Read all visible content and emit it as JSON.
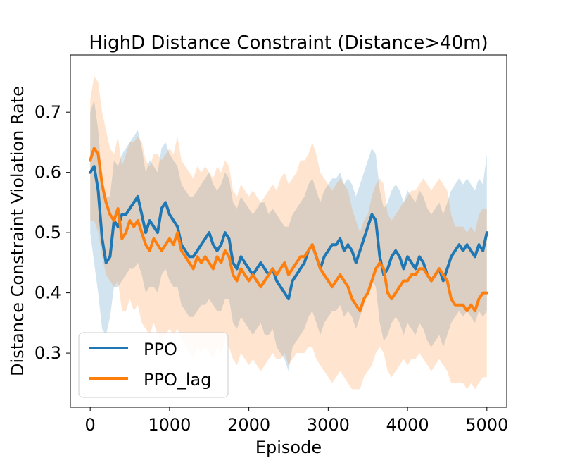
{
  "chart_data": {
    "type": "line",
    "title": "HighD Distance Constraint (Distance>40m)",
    "xlabel": "Episode",
    "ylabel": "Distance Constraint Violation Rate",
    "xlim": [
      -250,
      5250
    ],
    "ylim": [
      0.21,
      0.795
    ],
    "xticks": [
      0,
      1000,
      2000,
      3000,
      4000,
      5000
    ],
    "xtick_labels": [
      "0",
      "1000",
      "2000",
      "3000",
      "4000",
      "5000"
    ],
    "yticks": [
      0.3,
      0.4,
      0.5,
      0.6,
      0.7
    ],
    "ytick_labels": [
      "0.3",
      "0.4",
      "0.5",
      "0.6",
      "0.7"
    ],
    "grid": false,
    "legend": {
      "placement": "bottom-left"
    },
    "series": [
      {
        "name": "PPO",
        "color": "#1f77b4",
        "x": [
          0,
          50,
          100,
          150,
          200,
          250,
          300,
          350,
          400,
          450,
          500,
          550,
          600,
          650,
          700,
          750,
          800,
          850,
          900,
          950,
          1000,
          1050,
          1100,
          1150,
          1200,
          1250,
          1300,
          1350,
          1400,
          1450,
          1500,
          1550,
          1600,
          1650,
          1700,
          1750,
          1800,
          1850,
          1900,
          1950,
          2000,
          2050,
          2100,
          2150,
          2200,
          2250,
          2300,
          2350,
          2400,
          2450,
          2500,
          2550,
          2600,
          2650,
          2700,
          2750,
          2800,
          2850,
          2900,
          2950,
          3000,
          3050,
          3100,
          3150,
          3200,
          3250,
          3300,
          3350,
          3400,
          3450,
          3500,
          3550,
          3600,
          3650,
          3700,
          3750,
          3800,
          3850,
          3900,
          3950,
          4000,
          4050,
          4100,
          4150,
          4200,
          4250,
          4300,
          4350,
          4400,
          4450,
          4500,
          4550,
          4600,
          4650,
          4700,
          4750,
          4800,
          4850,
          4900,
          4950,
          5000
        ],
        "values": [
          0.6,
          0.61,
          0.57,
          0.49,
          0.45,
          0.46,
          0.52,
          0.51,
          0.53,
          0.53,
          0.54,
          0.55,
          0.56,
          0.53,
          0.5,
          0.52,
          0.51,
          0.5,
          0.54,
          0.55,
          0.53,
          0.52,
          0.51,
          0.48,
          0.47,
          0.46,
          0.46,
          0.47,
          0.48,
          0.49,
          0.5,
          0.48,
          0.47,
          0.48,
          0.5,
          0.49,
          0.45,
          0.44,
          0.46,
          0.45,
          0.44,
          0.43,
          0.44,
          0.45,
          0.44,
          0.43,
          0.44,
          0.42,
          0.41,
          0.4,
          0.39,
          0.42,
          0.43,
          0.44,
          0.45,
          0.47,
          0.48,
          0.46,
          0.44,
          0.46,
          0.47,
          0.48,
          0.48,
          0.49,
          0.47,
          0.48,
          0.47,
          0.45,
          0.47,
          0.49,
          0.51,
          0.53,
          0.52,
          0.46,
          0.43,
          0.44,
          0.46,
          0.47,
          0.46,
          0.44,
          0.46,
          0.45,
          0.44,
          0.46,
          0.45,
          0.43,
          0.42,
          0.43,
          0.44,
          0.42,
          0.44,
          0.46,
          0.47,
          0.48,
          0.47,
          0.48,
          0.47,
          0.46,
          0.48,
          0.47,
          0.5
        ],
        "band_lower": [
          0.5,
          0.45,
          0.4,
          0.34,
          0.33,
          0.36,
          0.41,
          0.41,
          0.42,
          0.43,
          0.44,
          0.44,
          0.45,
          0.43,
          0.4,
          0.41,
          0.41,
          0.4,
          0.43,
          0.44,
          0.42,
          0.41,
          0.41,
          0.38,
          0.37,
          0.36,
          0.36,
          0.37,
          0.38,
          0.38,
          0.39,
          0.38,
          0.37,
          0.37,
          0.39,
          0.39,
          0.35,
          0.34,
          0.36,
          0.35,
          0.34,
          0.33,
          0.34,
          0.35,
          0.33,
          0.33,
          0.34,
          0.31,
          0.3,
          0.29,
          0.27,
          0.31,
          0.32,
          0.33,
          0.34,
          0.36,
          0.37,
          0.35,
          0.33,
          0.35,
          0.36,
          0.37,
          0.37,
          0.38,
          0.36,
          0.37,
          0.36,
          0.34,
          0.36,
          0.38,
          0.4,
          0.42,
          0.41,
          0.35,
          0.32,
          0.33,
          0.35,
          0.36,
          0.35,
          0.33,
          0.35,
          0.34,
          0.33,
          0.35,
          0.34,
          0.32,
          0.31,
          0.32,
          0.33,
          0.31,
          0.33,
          0.35,
          0.36,
          0.37,
          0.36,
          0.37,
          0.36,
          0.35,
          0.37,
          0.36,
          0.37
        ],
        "band_upper": [
          0.7,
          0.72,
          0.67,
          0.59,
          0.56,
          0.56,
          0.62,
          0.61,
          0.63,
          0.64,
          0.65,
          0.66,
          0.67,
          0.64,
          0.6,
          0.62,
          0.61,
          0.6,
          0.64,
          0.65,
          0.63,
          0.62,
          0.61,
          0.58,
          0.57,
          0.56,
          0.56,
          0.57,
          0.58,
          0.59,
          0.6,
          0.58,
          0.57,
          0.58,
          0.6,
          0.59,
          0.55,
          0.54,
          0.56,
          0.55,
          0.54,
          0.53,
          0.54,
          0.55,
          0.55,
          0.53,
          0.54,
          0.53,
          0.52,
          0.51,
          0.51,
          0.53,
          0.54,
          0.55,
          0.56,
          0.58,
          0.59,
          0.57,
          0.55,
          0.57,
          0.58,
          0.59,
          0.59,
          0.6,
          0.58,
          0.59,
          0.58,
          0.56,
          0.58,
          0.6,
          0.62,
          0.64,
          0.63,
          0.57,
          0.54,
          0.55,
          0.57,
          0.58,
          0.57,
          0.55,
          0.57,
          0.56,
          0.55,
          0.57,
          0.56,
          0.54,
          0.53,
          0.54,
          0.55,
          0.53,
          0.55,
          0.57,
          0.58,
          0.59,
          0.58,
          0.59,
          0.58,
          0.57,
          0.59,
          0.58,
          0.63
        ]
      },
      {
        "name": "PPO_lag",
        "color": "#ff7f0e",
        "x": [
          0,
          50,
          100,
          150,
          200,
          250,
          300,
          350,
          400,
          450,
          500,
          550,
          600,
          650,
          700,
          750,
          800,
          850,
          900,
          950,
          1000,
          1050,
          1100,
          1150,
          1200,
          1250,
          1300,
          1350,
          1400,
          1450,
          1500,
          1550,
          1600,
          1650,
          1700,
          1750,
          1800,
          1850,
          1900,
          1950,
          2000,
          2050,
          2100,
          2150,
          2200,
          2250,
          2300,
          2350,
          2400,
          2450,
          2500,
          2550,
          2600,
          2650,
          2700,
          2750,
          2800,
          2850,
          2900,
          2950,
          3000,
          3050,
          3100,
          3150,
          3200,
          3250,
          3300,
          3350,
          3400,
          3450,
          3500,
          3550,
          3600,
          3650,
          3700,
          3750,
          3800,
          3850,
          3900,
          3950,
          4000,
          4050,
          4100,
          4150,
          4200,
          4250,
          4300,
          4350,
          4400,
          4450,
          4500,
          4550,
          4600,
          4650,
          4700,
          4750,
          4800,
          4850,
          4900,
          4950,
          5000
        ],
        "values": [
          0.62,
          0.64,
          0.63,
          0.58,
          0.55,
          0.53,
          0.52,
          0.54,
          0.49,
          0.5,
          0.52,
          0.51,
          0.52,
          0.5,
          0.48,
          0.47,
          0.49,
          0.48,
          0.47,
          0.48,
          0.49,
          0.48,
          0.5,
          0.47,
          0.46,
          0.45,
          0.44,
          0.46,
          0.45,
          0.46,
          0.45,
          0.44,
          0.46,
          0.45,
          0.47,
          0.46,
          0.43,
          0.42,
          0.44,
          0.43,
          0.42,
          0.43,
          0.42,
          0.41,
          0.42,
          0.43,
          0.44,
          0.43,
          0.44,
          0.45,
          0.43,
          0.44,
          0.45,
          0.46,
          0.46,
          0.47,
          0.48,
          0.46,
          0.44,
          0.43,
          0.42,
          0.41,
          0.42,
          0.43,
          0.42,
          0.41,
          0.39,
          0.38,
          0.37,
          0.39,
          0.4,
          0.42,
          0.44,
          0.45,
          0.44,
          0.4,
          0.39,
          0.4,
          0.41,
          0.42,
          0.42,
          0.43,
          0.43,
          0.44,
          0.44,
          0.43,
          0.42,
          0.43,
          0.44,
          0.43,
          0.42,
          0.39,
          0.38,
          0.38,
          0.38,
          0.37,
          0.38,
          0.37,
          0.39,
          0.4,
          0.4
        ],
        "band_lower": [
          0.52,
          0.52,
          0.5,
          0.46,
          0.43,
          0.42,
          0.41,
          0.42,
          0.37,
          0.37,
          0.39,
          0.37,
          0.38,
          0.35,
          0.34,
          0.33,
          0.35,
          0.33,
          0.32,
          0.33,
          0.34,
          0.33,
          0.34,
          0.32,
          0.31,
          0.3,
          0.29,
          0.31,
          0.3,
          0.31,
          0.3,
          0.29,
          0.31,
          0.3,
          0.32,
          0.31,
          0.29,
          0.28,
          0.3,
          0.29,
          0.28,
          0.29,
          0.28,
          0.27,
          0.28,
          0.29,
          0.3,
          0.29,
          0.29,
          0.3,
          0.28,
          0.29,
          0.3,
          0.3,
          0.3,
          0.31,
          0.31,
          0.29,
          0.28,
          0.27,
          0.26,
          0.25,
          0.26,
          0.27,
          0.26,
          0.25,
          0.24,
          0.24,
          0.24,
          0.26,
          0.27,
          0.28,
          0.3,
          0.31,
          0.3,
          0.27,
          0.26,
          0.27,
          0.28,
          0.29,
          0.28,
          0.29,
          0.29,
          0.3,
          0.29,
          0.28,
          0.27,
          0.28,
          0.29,
          0.28,
          0.27,
          0.25,
          0.25,
          0.25,
          0.25,
          0.24,
          0.25,
          0.24,
          0.25,
          0.26,
          0.26
        ],
        "band_upper": [
          0.72,
          0.76,
          0.75,
          0.7,
          0.67,
          0.64,
          0.63,
          0.66,
          0.61,
          0.63,
          0.65,
          0.65,
          0.66,
          0.65,
          0.62,
          0.61,
          0.63,
          0.63,
          0.62,
          0.63,
          0.64,
          0.63,
          0.66,
          0.62,
          0.61,
          0.6,
          0.59,
          0.61,
          0.6,
          0.61,
          0.6,
          0.59,
          0.61,
          0.6,
          0.62,
          0.61,
          0.57,
          0.56,
          0.58,
          0.57,
          0.56,
          0.57,
          0.56,
          0.55,
          0.56,
          0.57,
          0.58,
          0.57,
          0.59,
          0.6,
          0.58,
          0.59,
          0.6,
          0.62,
          0.62,
          0.63,
          0.65,
          0.63,
          0.6,
          0.59,
          0.58,
          0.57,
          0.58,
          0.59,
          0.58,
          0.57,
          0.54,
          0.52,
          0.5,
          0.52,
          0.53,
          0.56,
          0.58,
          0.59,
          0.58,
          0.53,
          0.52,
          0.53,
          0.54,
          0.55,
          0.56,
          0.57,
          0.57,
          0.58,
          0.59,
          0.58,
          0.57,
          0.58,
          0.59,
          0.58,
          0.57,
          0.53,
          0.51,
          0.51,
          0.51,
          0.5,
          0.51,
          0.5,
          0.53,
          0.54,
          0.54
        ]
      }
    ]
  }
}
